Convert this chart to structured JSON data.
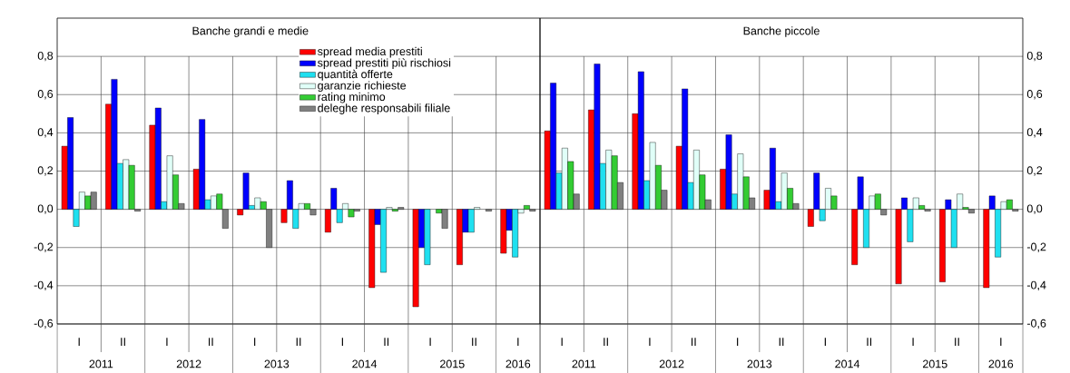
{
  "chart_data": [
    {
      "type": "bar",
      "title": "Banche grandi e medie",
      "categories": [
        "I",
        "II",
        "I",
        "II",
        "I",
        "II",
        "I",
        "II",
        "I",
        "II",
        "I"
      ],
      "series": [
        {
          "name": "spread media prestiti",
          "color": "#ff0000",
          "values": [
            0.33,
            0.55,
            0.44,
            0.21,
            -0.03,
            -0.07,
            -0.12,
            -0.41,
            -0.51,
            -0.29,
            -0.23
          ]
        },
        {
          "name": "spread prestiti più rischiosi",
          "color": "#0000ff",
          "values": [
            0.48,
            0.68,
            0.53,
            0.47,
            0.19,
            0.15,
            0.11,
            -0.08,
            -0.2,
            -0.12,
            -0.11
          ]
        },
        {
          "name": "quantità offerte",
          "color": "#1fe0f0",
          "values": [
            -0.09,
            0.24,
            0.04,
            0.05,
            0.02,
            -0.1,
            -0.07,
            -0.33,
            -0.29,
            -0.12,
            -0.25
          ]
        },
        {
          "name": "garanzie richieste",
          "color": "#e0fff8",
          "values": [
            0.09,
            0.26,
            0.28,
            0.07,
            0.06,
            0.03,
            0.03,
            0.01,
            null,
            0.01,
            -0.02
          ]
        },
        {
          "name": "rating minimo",
          "color": "#33cc33",
          "values": [
            0.07,
            0.23,
            0.18,
            0.08,
            0.04,
            0.03,
            -0.04,
            -0.01,
            -0.02,
            null,
            0.02
          ]
        },
        {
          "name": "deleghe responsabili filiale",
          "color": "#808080",
          "values": [
            0.09,
            -0.01,
            0.03,
            -0.1,
            -0.2,
            -0.03,
            -0.01,
            0.01,
            -0.1,
            -0.01,
            -0.01
          ]
        }
      ],
      "ylim": [
        -0.6,
        1.0
      ],
      "yticks": [
        {
          "value": -0.6,
          "label": "-0,6"
        },
        {
          "value": -0.4,
          "label": "-0,4"
        },
        {
          "value": -0.2,
          "label": "-0,2"
        },
        {
          "value": 0.0,
          "label": "0,0"
        },
        {
          "value": 0.2,
          "label": "0,2"
        },
        {
          "value": 0.4,
          "label": "0,4"
        },
        {
          "value": 0.6,
          "label": "0,6"
        },
        {
          "value": 0.8,
          "label": "0,8"
        }
      ],
      "grid": "y",
      "legend": "top",
      "annotations": [
        "2011",
        "2012",
        "2013",
        "2014",
        "2015",
        "2016"
      ]
    },
    {
      "type": "bar",
      "title": "Banche piccole",
      "categories": [
        "I",
        "II",
        "I",
        "II",
        "I",
        "II",
        "I",
        "II",
        "I",
        "II",
        "I"
      ],
      "series": [
        {
          "color": "#ff0000",
          "values": [
            0.41,
            0.52,
            0.5,
            0.33,
            0.21,
            0.1,
            -0.09,
            -0.29,
            -0.39,
            -0.38,
            -0.41
          ]
        },
        {
          "color": "#0000ff",
          "values": [
            0.66,
            0.76,
            0.72,
            0.63,
            0.39,
            0.32,
            0.19,
            0.17,
            0.06,
            0.05,
            0.07
          ]
        },
        {
          "color": "#1fe0f0",
          "values": [
            0.19,
            0.24,
            0.15,
            0.14,
            0.08,
            0.04,
            -0.06,
            -0.2,
            -0.17,
            -0.2,
            -0.25
          ]
        },
        {
          "color": "#e0fff8",
          "values": [
            0.32,
            0.31,
            0.35,
            0.31,
            0.29,
            0.19,
            0.11,
            0.07,
            0.06,
            0.08,
            0.04
          ]
        },
        {
          "color": "#33cc33",
          "values": [
            0.25,
            0.28,
            0.23,
            0.18,
            0.17,
            0.11,
            0.07,
            0.08,
            0.02,
            0.01,
            0.05
          ]
        },
        {
          "color": "#808080",
          "values": [
            0.08,
            0.14,
            0.1,
            0.05,
            0.06,
            0.03,
            null,
            -0.03,
            -0.01,
            -0.02,
            -0.01
          ]
        }
      ],
      "ylim": [
        -0.6,
        1.0
      ],
      "yticks": [
        {
          "value": -0.6,
          "label": "-0,6"
        },
        {
          "value": -0.4,
          "label": "-0,4"
        },
        {
          "value": -0.2,
          "label": "-0,2"
        },
        {
          "value": 0.0,
          "label": "0,0"
        },
        {
          "value": 0.2,
          "label": "0,2"
        },
        {
          "value": 0.4,
          "label": "0,4"
        },
        {
          "value": 0.6,
          "label": "0,6"
        },
        {
          "value": 0.8,
          "label": "0,8"
        }
      ],
      "grid": "y",
      "legend": false,
      "annotations": [
        "2011",
        "2012",
        "2013",
        "2014",
        "2015",
        "2016"
      ]
    }
  ]
}
